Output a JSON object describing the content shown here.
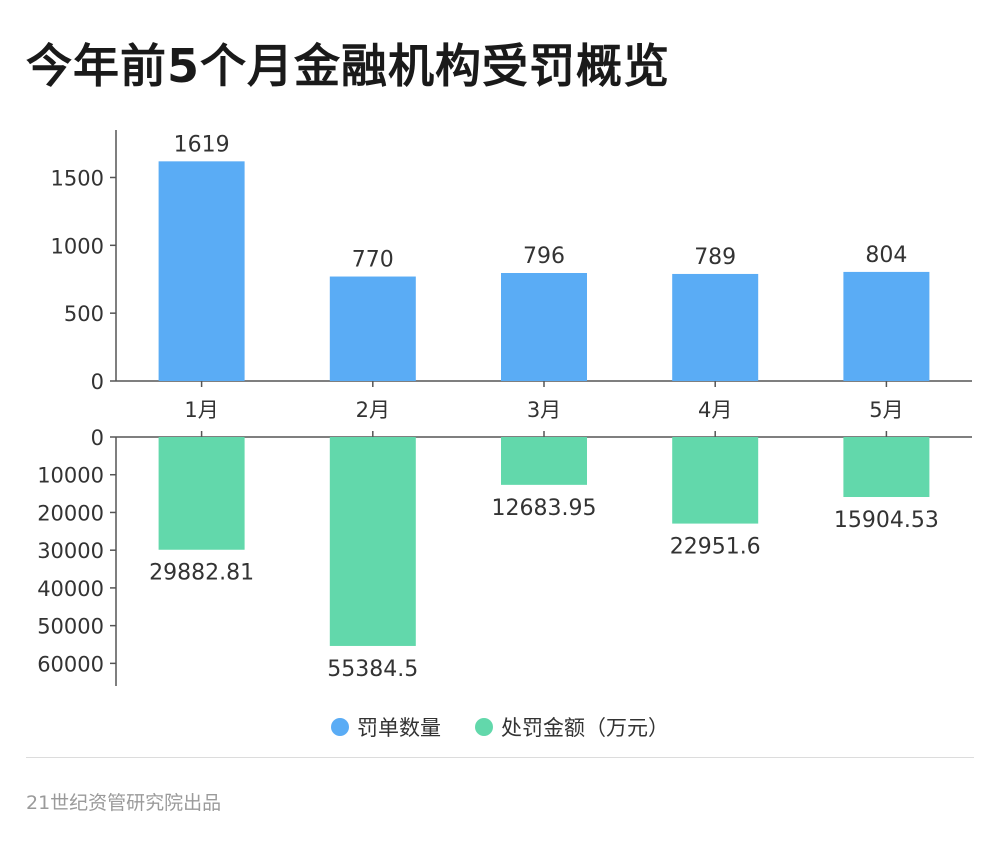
{
  "title": "今年前5个月金融机构受罚概览",
  "source": "21世纪资管研究院出品",
  "colors": {
    "top": "#5aacf5",
    "bottom": "#62d8ab",
    "axis": "#555555",
    "text": "#333333"
  },
  "legend": [
    {
      "label": "罚单数量",
      "color": "#5aacf5"
    },
    {
      "label": "处罚金额（万元）",
      "color": "#62d8ab"
    }
  ],
  "chart_data": [
    {
      "type": "bar",
      "categories": [
        "1月",
        "2月",
        "3月",
        "4月",
        "5月"
      ],
      "series": [
        {
          "name": "罚单数量",
          "values": [
            1619,
            770,
            796,
            789,
            804
          ]
        }
      ],
      "value_labels": [
        "1619",
        "770",
        "796",
        "789",
        "804"
      ],
      "ylim": [
        0,
        1850
      ],
      "yticks": [
        0,
        500,
        1000,
        1500
      ],
      "ytick_labels": [
        "0",
        "500",
        "1000",
        "1500"
      ]
    },
    {
      "type": "bar",
      "orientation": "downward",
      "categories": [
        "1月",
        "2月",
        "3月",
        "4月",
        "5月"
      ],
      "series": [
        {
          "name": "处罚金额（万元）",
          "values": [
            29882.81,
            55384.5,
            12683.95,
            22951.6,
            15904.53
          ]
        }
      ],
      "value_labels": [
        "29882.81",
        "55384.5",
        "12683.95",
        "22951.6",
        "15904.53"
      ],
      "ylim": [
        0,
        66000
      ],
      "yticks": [
        0,
        10000,
        20000,
        30000,
        40000,
        50000,
        60000
      ],
      "ytick_labels": [
        "0",
        "10000",
        "20000",
        "30000",
        "40000",
        "50000",
        "60000"
      ]
    }
  ]
}
